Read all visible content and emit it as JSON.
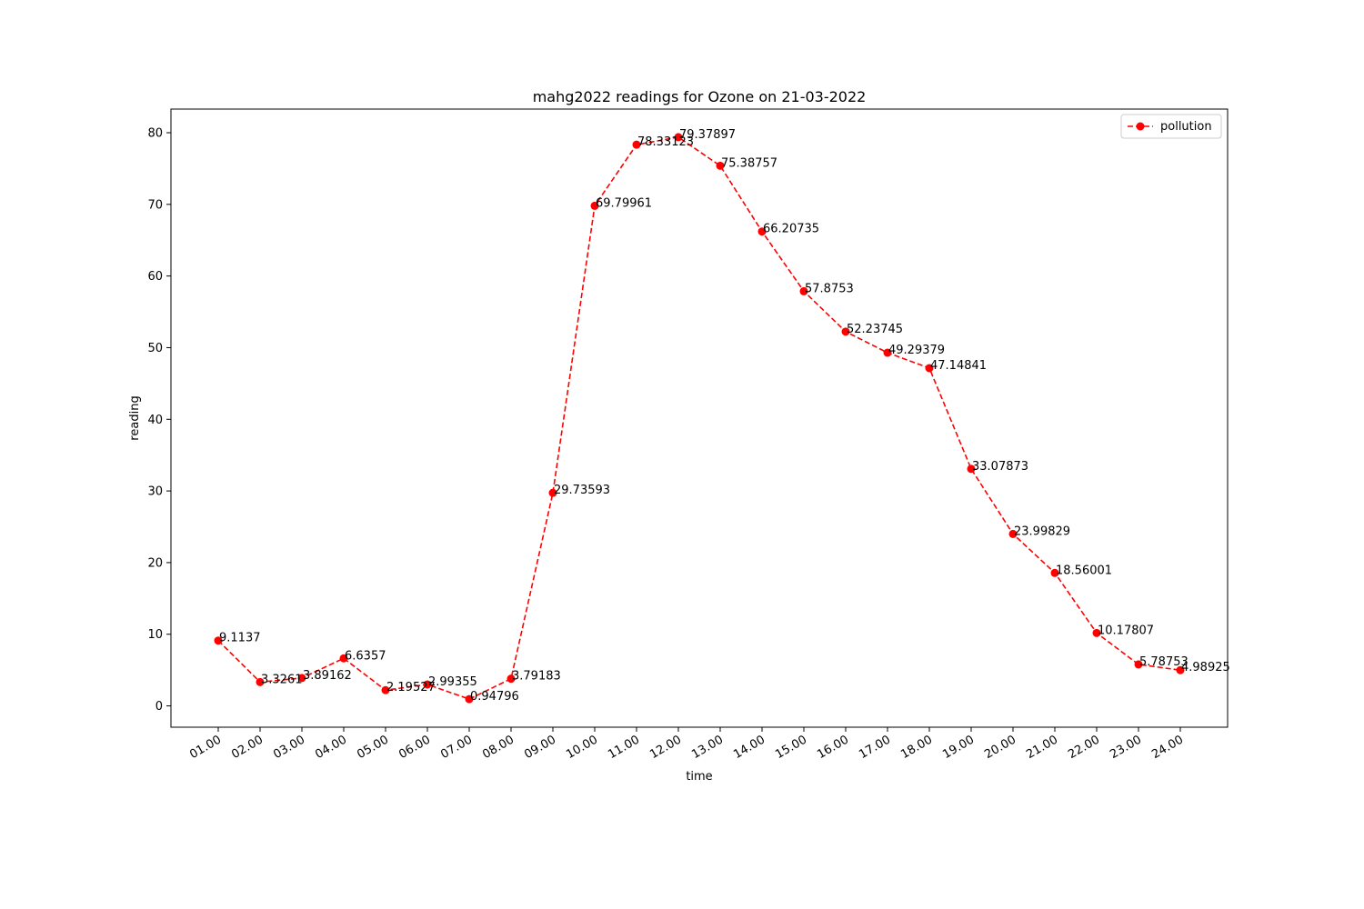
{
  "chart_data": {
    "type": "line",
    "title": "mahg2022 readings for Ozone on 21-03-2022",
    "xlabel": "time",
    "ylabel": "reading",
    "categories": [
      "01.00",
      "02.00",
      "03.00",
      "04.00",
      "05.00",
      "06.00",
      "07.00",
      "08.00",
      "09.00",
      "10.00",
      "11.00",
      "12.00",
      "13.00",
      "14.00",
      "15.00",
      "16.00",
      "17.00",
      "18.00",
      "19.00",
      "20.00",
      "21.00",
      "22.00",
      "23.00",
      "24.00"
    ],
    "series": [
      {
        "name": "pollution",
        "values": [
          9.1137,
          3.3261,
          3.89162,
          6.6357,
          2.19527,
          2.99355,
          0.94796,
          3.79183,
          29.73593,
          69.79961,
          78.33123,
          79.37897,
          75.38757,
          66.20735,
          57.8753,
          52.23745,
          49.29379,
          47.14841,
          33.07873,
          23.99829,
          18.56001,
          10.17807,
          5.78753,
          4.98925
        ],
        "labels": [
          "9.1137",
          "3.3261",
          "3.89162",
          "6.6357",
          "2.19527",
          "2.99355",
          "0.94796",
          "3.79183",
          "29.73593",
          "69.79961",
          "78.33123",
          "79.37897",
          "75.38757",
          "66.20735",
          "57.8753",
          "52.23745",
          "49.29379",
          "47.14841",
          "33.07873",
          "23.99829",
          "18.56001",
          "10.17807",
          "5.78753",
          "4.98925"
        ],
        "color": "#ff0000",
        "line_style": "dashed",
        "marker": "circle"
      }
    ],
    "yticks": [
      0,
      10,
      20,
      30,
      40,
      50,
      60,
      70,
      80
    ],
    "ylim": [
      -2.975,
      83.3
    ],
    "legend": "top-right",
    "grid": false
  }
}
